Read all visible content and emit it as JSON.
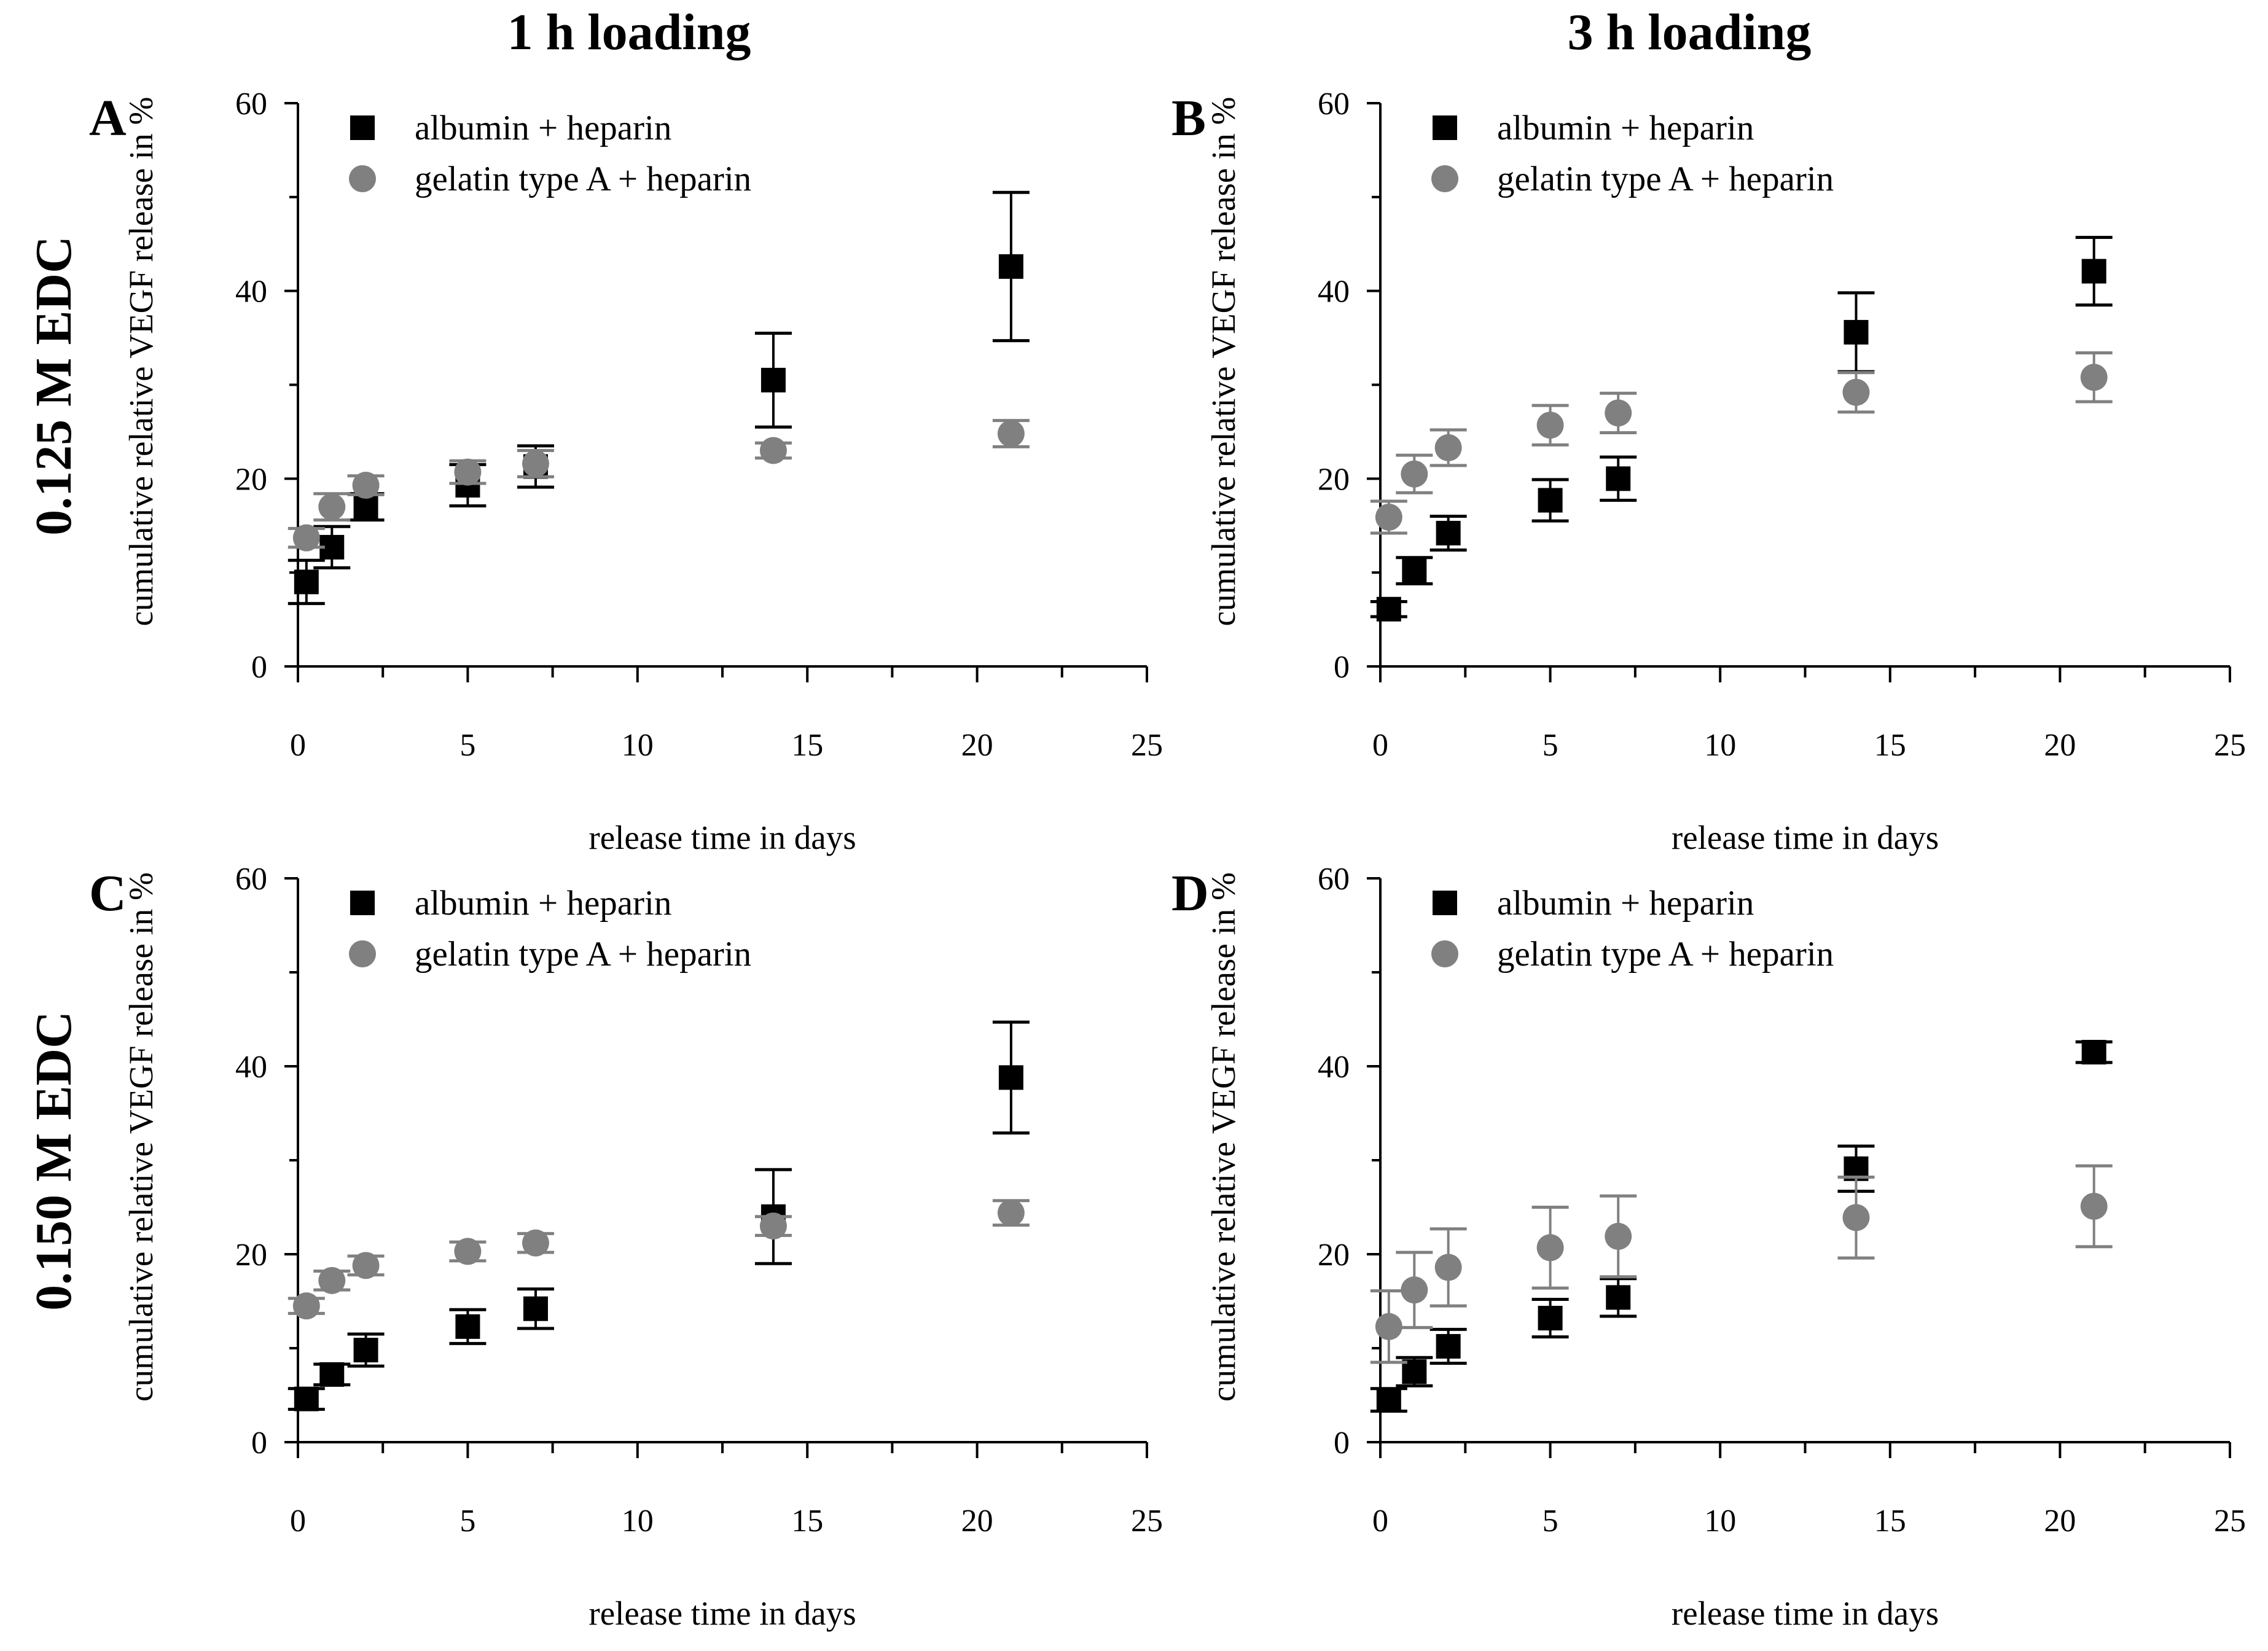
{
  "figure": {
    "column_headers": [
      "1 h loading",
      "3 h loading"
    ],
    "row_headers": [
      "0.125 M EDC",
      "0.150 M EDC"
    ],
    "colors": {
      "albumin": "#000000",
      "gelatin": "#808080"
    }
  },
  "chart_data": [
    {
      "type": "scatter",
      "panel": "A",
      "xlabel": "release time in days",
      "ylabel": "cumulative relative VEGF release in %",
      "xlim": [
        0,
        25
      ],
      "ylim": [
        0,
        60
      ],
      "xticks": [
        "0",
        "5",
        "10",
        "15",
        "20",
        "25"
      ],
      "yticks": [
        "0",
        "20",
        "40",
        "60"
      ],
      "legend": [
        "albumin + heparin",
        "gelatin type A + heparin"
      ],
      "series": [
        {
          "name": "albumin + heparin",
          "marker": "square",
          "color": "#000000",
          "x": [
            0.25,
            1,
            2,
            5,
            7,
            14,
            21
          ],
          "y": [
            9.0,
            12.7,
            17.0,
            19.3,
            21.3,
            30.5,
            42.6
          ],
          "err": [
            2.3,
            2.2,
            1.4,
            2.2,
            2.2,
            5.0,
            7.9
          ]
        },
        {
          "name": "gelatin type A + heparin",
          "marker": "circle",
          "color": "#808080",
          "x": [
            0.25,
            1,
            2,
            5,
            7,
            14,
            21
          ],
          "y": [
            13.7,
            17.0,
            19.3,
            20.7,
            21.6,
            23.0,
            24.8
          ],
          "err": [
            1.0,
            1.4,
            1.0,
            1.2,
            1.4,
            0.8,
            1.4
          ]
        }
      ]
    },
    {
      "type": "scatter",
      "panel": "B",
      "xlabel": "release time in days",
      "ylabel": "cumulative relative VEGF release in %",
      "xlim": [
        0,
        25
      ],
      "ylim": [
        0,
        60
      ],
      "xticks": [
        "0",
        "5",
        "10",
        "15",
        "20",
        "25"
      ],
      "yticks": [
        "0",
        "20",
        "40",
        "60"
      ],
      "legend": [
        "albumin + heparin",
        "gelatin type A + heparin"
      ],
      "series": [
        {
          "name": "albumin + heparin",
          "marker": "square",
          "color": "#000000",
          "x": [
            0.25,
            1,
            2,
            5,
            7,
            14,
            21
          ],
          "y": [
            6.1,
            10.2,
            14.2,
            17.7,
            20.0,
            35.6,
            42.1
          ],
          "err": [
            0.8,
            1.4,
            1.8,
            2.2,
            2.3,
            4.2,
            3.6
          ]
        },
        {
          "name": "gelatin type A + heparin",
          "marker": "circle",
          "color": "#808080",
          "x": [
            0.25,
            1,
            2,
            5,
            7,
            14,
            21
          ],
          "y": [
            15.9,
            20.5,
            23.3,
            25.7,
            27.0,
            29.2,
            30.8
          ],
          "err": [
            1.7,
            2.0,
            1.9,
            2.1,
            2.1,
            2.1,
            2.6
          ]
        }
      ]
    },
    {
      "type": "scatter",
      "panel": "C",
      "xlabel": "release time in days",
      "ylabel": "cumulative relative VEGF release in %",
      "xlim": [
        0,
        25
      ],
      "ylim": [
        0,
        60
      ],
      "xticks": [
        "0",
        "5",
        "10",
        "15",
        "20",
        "25"
      ],
      "yticks": [
        "0",
        "20",
        "40",
        "60"
      ],
      "legend": [
        "albumin + heparin",
        "gelatin type A + heparin"
      ],
      "series": [
        {
          "name": "albumin + heparin",
          "marker": "square",
          "color": "#000000",
          "x": [
            0.25,
            1,
            2,
            5,
            7,
            14,
            21
          ],
          "y": [
            4.6,
            7.2,
            9.8,
            12.3,
            14.2,
            24.0,
            38.8
          ],
          "err": [
            1.1,
            1.1,
            1.7,
            1.8,
            2.1,
            5.0,
            5.9
          ]
        },
        {
          "name": "gelatin type A + heparin",
          "marker": "circle",
          "color": "#808080",
          "x": [
            0.25,
            1,
            2,
            5,
            7,
            14,
            21
          ],
          "y": [
            14.5,
            17.2,
            18.8,
            20.3,
            21.2,
            23.0,
            24.4
          ],
          "err": [
            0.8,
            1.0,
            1.0,
            1.0,
            1.0,
            1.0,
            1.3
          ]
        }
      ]
    },
    {
      "type": "scatter",
      "panel": "D",
      "xlabel": "release time in days",
      "ylabel": "cumulative relative VEGF release in %",
      "xlim": [
        0,
        25
      ],
      "ylim": [
        0,
        60
      ],
      "xticks": [
        "0",
        "5",
        "10",
        "15",
        "20",
        "25"
      ],
      "yticks": [
        "0",
        "20",
        "40",
        "60"
      ],
      "legend": [
        "albumin + heparin",
        "gelatin type A + heparin"
      ],
      "series": [
        {
          "name": "albumin + heparin",
          "marker": "square",
          "color": "#000000",
          "x": [
            0.25,
            1,
            2,
            5,
            7,
            14,
            21
          ],
          "y": [
            4.5,
            7.5,
            10.2,
            13.2,
            15.4,
            29.1,
            41.5
          ],
          "err": [
            1.2,
            1.5,
            1.8,
            2.0,
            2.0,
            2.4,
            1.1
          ]
        },
        {
          "name": "gelatin type A + heparin",
          "marker": "circle",
          "color": "#808080",
          "x": [
            0.25,
            1,
            2,
            5,
            7,
            14,
            21
          ],
          "y": [
            12.3,
            16.2,
            18.6,
            20.7,
            21.9,
            23.9,
            25.1
          ],
          "err": [
            3.8,
            4.0,
            4.1,
            4.3,
            4.3,
            4.3,
            4.3
          ]
        }
      ]
    }
  ]
}
